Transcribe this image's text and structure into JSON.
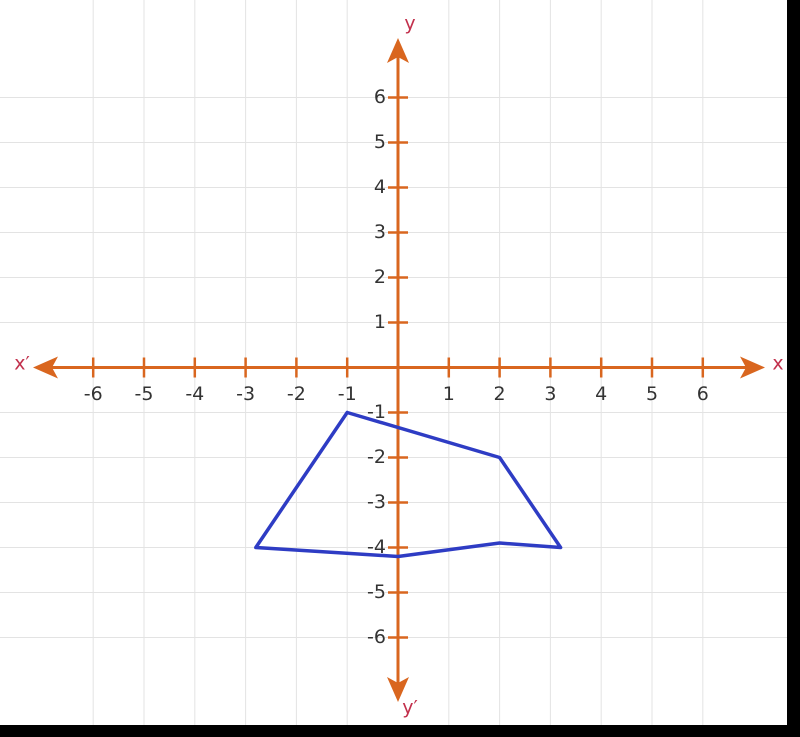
{
  "chart_data": {
    "type": "line",
    "x_label": "x",
    "x_label_neg": "x′",
    "y_label": "y",
    "y_label_neg": "y′",
    "x": [
      -1,
      2,
      3.2,
      2,
      0,
      -2.8,
      -1
    ],
    "values": [
      -1,
      -2,
      -4,
      -3.9,
      -4.2,
      -4,
      -1
    ],
    "color": "#2e3cc4",
    "axis_color": "#d9661f",
    "xlim": [
      -7.5,
      7.5
    ],
    "ylim": [
      -7.5,
      7.5
    ],
    "xticks": [
      -6,
      -5,
      -4,
      -3,
      -2,
      -1,
      1,
      2,
      3,
      4,
      5,
      6
    ],
    "yticks": [
      -6,
      -5,
      -4,
      -3,
      -2,
      -1,
      1,
      2,
      3,
      4,
      5,
      6
    ],
    "grid": true
  }
}
